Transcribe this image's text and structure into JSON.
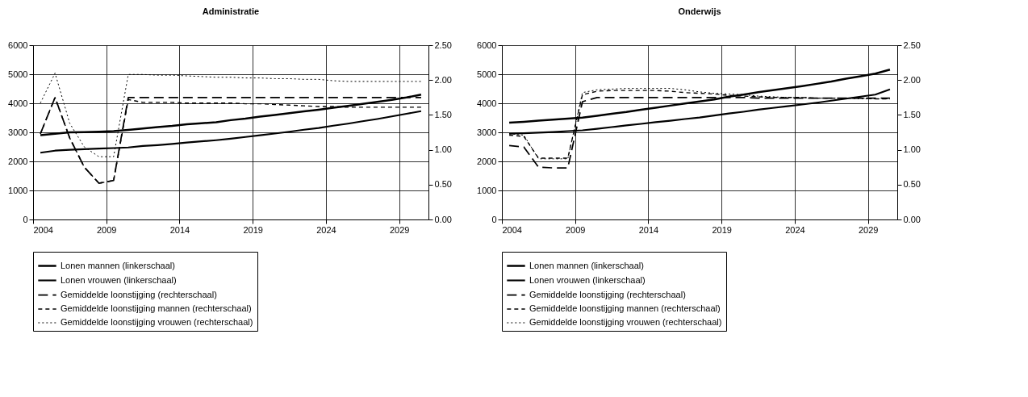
{
  "chart_data": [
    {
      "type": "line",
      "title": "Administratie",
      "x": [
        2004.5,
        2005.5,
        2006.5,
        2007.5,
        2008.5,
        2009.5,
        2010.5,
        2011.5,
        2012.5,
        2013.5,
        2014.5,
        2015.5,
        2016.5,
        2017.5,
        2018.5,
        2019.5,
        2020.5,
        2021.5,
        2022.5,
        2023.5,
        2024.5,
        2025.5,
        2026.5,
        2027.5,
        2028.5,
        2029.5,
        2030.5
      ],
      "xlim": [
        2004,
        2031
      ],
      "xticks": [
        2004,
        2009,
        2014,
        2019,
        2024,
        2029
      ],
      "ylim": [
        0,
        6000
      ],
      "yticks": [
        0,
        1000,
        2000,
        3000,
        4000,
        5000,
        6000
      ],
      "y2lim": [
        0,
        2.5
      ],
      "y2ticks": [
        {
          "value": 0,
          "label": "0.00"
        },
        {
          "value": 0.5,
          "label": "0.50"
        },
        {
          "value": 1,
          "label": "1.00"
        },
        {
          "value": 1.5,
          "label": "1.50"
        },
        {
          "value": 2,
          "label": "2.00"
        },
        {
          "value": 2.5,
          "label": "2.50"
        }
      ],
      "grid": true,
      "legend": "bottom",
      "series": [
        {
          "name": "Lonen mannen (linkerschaal)",
          "color": "#000000",
          "line_style": "solid",
          "values": [
            2900,
            2950,
            3000,
            3010,
            3020,
            3040,
            3080,
            3130,
            3180,
            3220,
            3280,
            3310,
            3350,
            3420,
            3470,
            3540,
            3600,
            3660,
            3720,
            3780,
            3850,
            3910,
            3980,
            4050,
            4120,
            4200,
            4300
          ]
        },
        {
          "name": "Lonen vrouwen (linkerschaal)",
          "color": "#000000",
          "line_style": "solid",
          "values": [
            2300,
            2370,
            2400,
            2420,
            2440,
            2460,
            2480,
            2530,
            2560,
            2600,
            2650,
            2690,
            2730,
            2780,
            2840,
            2900,
            2960,
            3020,
            3090,
            3150,
            3230,
            3300,
            3380,
            3460,
            3550,
            3640,
            3730
          ]
        },
        {
          "name": "Gemiddelde loonstijging (rechterschaal)",
          "color": "#000000",
          "line_style": "dashed",
          "axis": "y2",
          "values": [
            1.23,
            1.75,
            1.17,
            0.75,
            0.52,
            0.56,
            1.75,
            1.75,
            1.75,
            1.75,
            1.75,
            1.75,
            1.75,
            1.75,
            1.75,
            1.75,
            1.75,
            1.75,
            1.75,
            1.75,
            1.75,
            1.75,
            1.75,
            1.75,
            1.75,
            1.75,
            1.75
          ]
        },
        {
          "name": "Gemiddelde loonstijging mannen (rechterschaal)",
          "color": "#000000",
          "line_style": "dashed",
          "axis": "y2",
          "values": [
            1.23,
            1.75,
            1.17,
            0.75,
            0.52,
            0.56,
            1.72,
            1.68,
            1.68,
            1.68,
            1.67,
            1.67,
            1.67,
            1.67,
            1.66,
            1.66,
            1.65,
            1.64,
            1.63,
            1.62,
            1.62,
            1.61,
            1.61,
            1.61,
            1.61,
            1.61,
            1.61
          ]
        },
        {
          "name": "Gemiddelde loonstijging vrouwen (rechterschaal)",
          "color": "#000000",
          "line_style": "dotted",
          "axis": "y2",
          "values": [
            1.67,
            2.1,
            1.38,
            1.04,
            0.9,
            0.9,
            2.08,
            2.08,
            2.07,
            2.07,
            2.06,
            2.05,
            2.04,
            2.04,
            2.03,
            2.03,
            2.02,
            2.02,
            2.01,
            2.01,
            1.99,
            1.98,
            1.98,
            1.98,
            1.98,
            1.98,
            1.98
          ]
        }
      ]
    },
    {
      "type": "line",
      "title": "Onderwijs",
      "x": [
        2004.5,
        2005.5,
        2006.5,
        2007.5,
        2008.5,
        2009.5,
        2010.5,
        2011.5,
        2012.5,
        2013.5,
        2014.5,
        2015.5,
        2016.5,
        2017.5,
        2018.5,
        2019.5,
        2020.5,
        2021.5,
        2022.5,
        2023.5,
        2024.5,
        2025.5,
        2026.5,
        2027.5,
        2028.5,
        2029.5,
        2030.5
      ],
      "xlim": [
        2004,
        2031
      ],
      "xticks": [
        2004,
        2009,
        2014,
        2019,
        2024,
        2029
      ],
      "ylim": [
        0,
        6000
      ],
      "yticks": [
        0,
        1000,
        2000,
        3000,
        4000,
        5000,
        6000
      ],
      "y2lim": [
        0,
        2.5
      ],
      "y2ticks": [
        {
          "value": 0,
          "label": "0.00"
        },
        {
          "value": 0.5,
          "label": "0.50"
        },
        {
          "value": 1,
          "label": "1.00"
        },
        {
          "value": 1.5,
          "label": "1.50"
        },
        {
          "value": 2,
          "label": "2.00"
        },
        {
          "value": 2.5,
          "label": "2.50"
        }
      ],
      "grid": true,
      "legend": "bottom",
      "series": [
        {
          "name": "Lonen mannen (linkerschaal)",
          "color": "#000000",
          "line_style": "solid",
          "values": [
            3330,
            3360,
            3400,
            3440,
            3470,
            3510,
            3570,
            3640,
            3700,
            3780,
            3850,
            3920,
            3990,
            4060,
            4130,
            4230,
            4300,
            4380,
            4450,
            4520,
            4590,
            4670,
            4750,
            4850,
            4930,
            5020,
            5160
          ]
        },
        {
          "name": "Lonen vrouwen (linkerschaal)",
          "color": "#000000",
          "line_style": "solid",
          "values": [
            2950,
            2970,
            2990,
            3010,
            3040,
            3070,
            3120,
            3180,
            3240,
            3290,
            3350,
            3400,
            3460,
            3510,
            3580,
            3650,
            3710,
            3780,
            3840,
            3900,
            3960,
            4020,
            4090,
            4160,
            4230,
            4300,
            4480
          ]
        },
        {
          "name": "Gemiddelde loonstijging (rechterschaal)",
          "color": "#000000",
          "line_style": "dashed",
          "axis": "y2",
          "values": [
            1.06,
            1.04,
            0.75,
            0.74,
            0.74,
            1.69,
            1.75,
            1.75,
            1.75,
            1.75,
            1.75,
            1.75,
            1.75,
            1.75,
            1.75,
            1.75,
            1.75,
            1.74,
            1.74,
            1.74,
            1.74,
            1.74,
            1.74,
            1.74,
            1.74,
            1.74,
            1.74
          ]
        },
        {
          "name": "Gemiddelde loonstijging mannen (rechterschaal)",
          "color": "#000000",
          "line_style": "dashed",
          "axis": "y2",
          "values": [
            1.21,
            1.19,
            0.88,
            0.88,
            0.88,
            1.79,
            1.84,
            1.85,
            1.85,
            1.85,
            1.85,
            1.84,
            1.82,
            1.81,
            1.8,
            1.78,
            1.77,
            1.76,
            1.75,
            1.75,
            1.75,
            1.74,
            1.74,
            1.74,
            1.74,
            1.73,
            1.73
          ]
        },
        {
          "name": "Gemiddelde loonstijging vrouwen (rechterschaal)",
          "color": "#000000",
          "line_style": "dotted",
          "axis": "y2",
          "values": [
            1.23,
            1.21,
            0.87,
            0.87,
            0.87,
            1.82,
            1.86,
            1.87,
            1.88,
            1.88,
            1.88,
            1.88,
            1.86,
            1.83,
            1.81,
            1.8,
            1.79,
            1.77,
            1.76,
            1.75,
            1.75,
            1.74,
            1.74,
            1.74,
            1.73,
            1.73,
            1.73
          ]
        }
      ]
    }
  ]
}
